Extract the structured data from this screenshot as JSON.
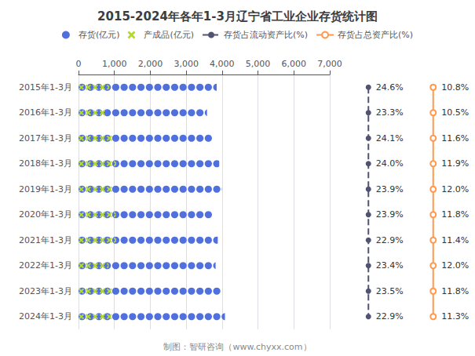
{
  "chart_data": {
    "type": "bar",
    "orientation": "horizontal",
    "title": "2015-2024年各年1-3月辽宁省工业企业存货统计图",
    "categories": [
      "2015年1-3月",
      "2016年1-3月",
      "2017年1-3月",
      "2018年1-3月",
      "2019年1-3月",
      "2020年1-3月",
      "2021年1-3月",
      "2022年1-3月",
      "2023年1-3月",
      "2024年1-3月"
    ],
    "series": [
      {
        "name": "存货(亿元)",
        "marker": "circle",
        "values": [
          3850,
          3580,
          3750,
          3920,
          3990,
          3740,
          3880,
          3820,
          3980,
          4080
        ]
      },
      {
        "name": "产成品(亿元)",
        "marker": "x",
        "values": [
          860,
          790,
          950,
          1050,
          940,
          1040,
          1050,
          840,
          970,
          920
        ]
      },
      {
        "name": "存货占流动资产比(%)",
        "type": "line",
        "marker": "circle",
        "line_style": "dashed",
        "data_labels": true,
        "values": [
          24.6,
          23.3,
          24.1,
          24.0,
          23.9,
          23.9,
          22.9,
          23.4,
          23.5,
          22.9
        ],
        "value_labels": [
          "24.6%",
          "23.3%",
          "24.1%",
          "24.0%",
          "23.9%",
          "23.9%",
          "22.9%",
          "23.4%",
          "23.5%",
          "22.9%"
        ]
      },
      {
        "name": "存货占总资产比(%)",
        "type": "line",
        "marker": "open_circle",
        "line_style": "solid",
        "data_labels": true,
        "values": [
          10.8,
          10.5,
          11.6,
          11.9,
          12.0,
          11.8,
          11.4,
          12.0,
          11.8,
          11.3
        ],
        "value_labels": [
          "10.8%",
          "10.5%",
          "11.6%",
          "11.9%",
          "12.0%",
          "11.8%",
          "11.4%",
          "12.0%",
          "11.8%",
          "11.3%"
        ]
      }
    ],
    "xlim": [
      0,
      7000
    ],
    "xticks": [
      0,
      1000,
      2000,
      3000,
      4000,
      5000,
      6000,
      7000
    ],
    "grid": true,
    "legend": "top",
    "annotations": [
      "制图：智研咨询（www.chyxx.com）"
    ]
  }
}
